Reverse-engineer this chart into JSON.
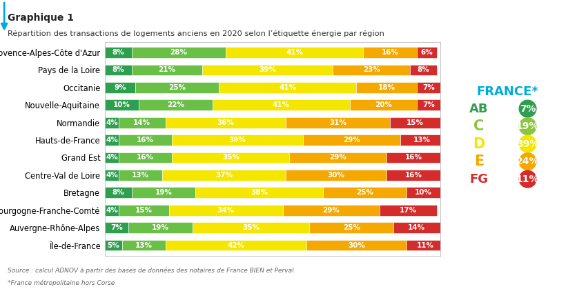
{
  "title_bold": "Graphique 1",
  "title_sub": "Répartition des transactions de logements anciens en 2020 selon l’étiquette énergie par région",
  "source": "Source : calcul ADNOV à partir des bases de données des notaires de France BIEN et Perval",
  "footnote": "*France métropolitaine hors Corse",
  "regions": [
    "Provence-Alpes-Côte d'Azur",
    "Pays de la Loire",
    "Occitanie",
    "Nouvelle-Aquitaine",
    "Normandie",
    "Hauts-de-France",
    "Grand Est",
    "Centre-Val de Loire",
    "Bretagne",
    "Bourgogne-Franche-Comté",
    "Auvergne-Rhône-Alpes",
    "Île-de-France"
  ],
  "data": {
    "AB": [
      8,
      8,
      9,
      10,
      4,
      4,
      4,
      4,
      8,
      4,
      7,
      5
    ],
    "C": [
      28,
      21,
      25,
      22,
      14,
      16,
      16,
      13,
      19,
      15,
      19,
      13
    ],
    "D": [
      41,
      39,
      41,
      41,
      36,
      39,
      35,
      37,
      38,
      34,
      35,
      42
    ],
    "E": [
      16,
      23,
      18,
      20,
      31,
      29,
      29,
      30,
      25,
      29,
      25,
      30
    ],
    "FG": [
      6,
      8,
      7,
      7,
      15,
      13,
      16,
      16,
      10,
      17,
      14,
      11
    ]
  },
  "colors": {
    "AB": "#2e9e4f",
    "C": "#6abf47",
    "D": "#f5e600",
    "E": "#f5a800",
    "FG": "#d42b2b"
  },
  "france_title": "FRANCE*",
  "france_title_color": "#00aadc",
  "france_items": [
    {
      "label": "AB",
      "label_color": "#2e9e4f",
      "circ_color": "#2e9e4f",
      "pct": "7%"
    },
    {
      "label": "C",
      "label_color": "#8cc63f",
      "circ_color": "#8cc63f",
      "pct": "19%"
    },
    {
      "label": "D",
      "label_color": "#f5e600",
      "circ_color": "#f5e600",
      "pct": "39%"
    },
    {
      "label": "E",
      "label_color": "#f5a800",
      "circ_color": "#f5a800",
      "pct": "24%"
    },
    {
      "label": "FG",
      "label_color": "#d42b2b",
      "circ_color": "#d42b2b",
      "pct": "11%"
    }
  ],
  "background_color": "#ffffff",
  "bar_height": 0.62
}
